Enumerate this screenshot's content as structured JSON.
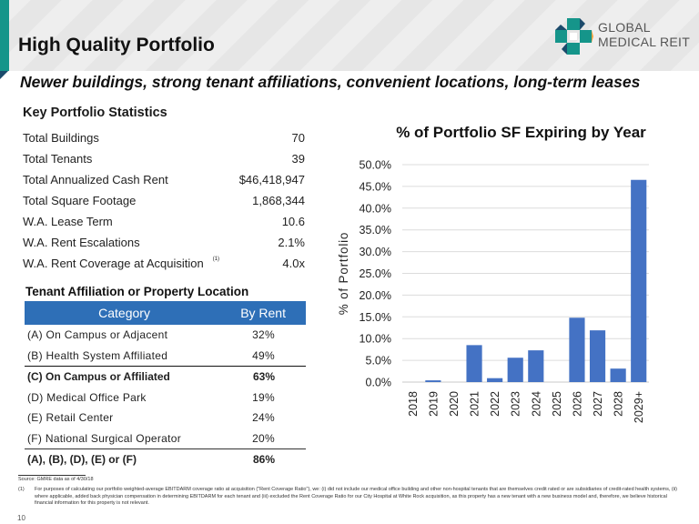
{
  "header": {
    "title": "High Quality Portfolio",
    "subtitle": "Newer buildings, strong tenant affiliations, convenient locations, long-term leases",
    "logo": {
      "line1": "GLOBAL",
      "line2": "MEDICAL REIT",
      "icon": "medical-cross-logo-icon",
      "colors": {
        "teal": "#15958a",
        "navy": "#1b4a6b",
        "orange": "#f0a23c"
      }
    }
  },
  "key_stats": {
    "title": "Key Portfolio Statistics",
    "rows": [
      {
        "label": "Total Buildings",
        "value": "70"
      },
      {
        "label": "Total Tenants",
        "value": "39"
      },
      {
        "label": "Total Annualized Cash Rent",
        "value": "$46,418,947"
      },
      {
        "label": "Total Square Footage",
        "value": "1,868,344"
      },
      {
        "label": "W.A. Lease Term",
        "value": "10.6"
      },
      {
        "label": "W.A. Rent Escalations",
        "value": "2.1%"
      },
      {
        "label": "W.A. Rent Coverage at Acquisition",
        "value": "4.0x",
        "footnote": "(1)"
      }
    ]
  },
  "tenant_affiliation": {
    "title": "Tenant Affiliation or Property Location",
    "header": {
      "category": "Category",
      "by_rent": "By Rent",
      "color": "#2e6fb7"
    },
    "rows": [
      {
        "category": "(A) On Campus or Adjacent",
        "by_rent": "32%"
      },
      {
        "category": "(B) Health System Affiliated",
        "by_rent": "49%"
      },
      {
        "category": "(C) On Campus or Affiliated",
        "by_rent": "63%"
      },
      {
        "category": "(D) Medical Office Park",
        "by_rent": "19%"
      },
      {
        "category": "(E) Retail Center",
        "by_rent": "24%"
      },
      {
        "category": "(F) National Surgical Operator",
        "by_rent": "20%"
      },
      {
        "category": "(A), (B), (D), (E) or (F)",
        "by_rent": "86%"
      }
    ]
  },
  "chart_data": {
    "type": "bar",
    "title": "% of Portfolio SF Expiring by Year",
    "xlabel": "",
    "ylabel": "% of Portfolio",
    "categories": [
      "2018",
      "2019",
      "2020",
      "2021",
      "2022",
      "2023",
      "2024",
      "2025",
      "2026",
      "2027",
      "2028",
      "2029+"
    ],
    "values": [
      0.0,
      0.4,
      0.0,
      8.5,
      0.9,
      5.6,
      7.3,
      0.0,
      14.8,
      11.9,
      3.1,
      46.5
    ],
    "ylim": [
      0,
      50
    ],
    "yticks": [
      0,
      5,
      10,
      15,
      20,
      25,
      30,
      35,
      40,
      45,
      50
    ],
    "ytick_labels": [
      "0.0%",
      "5.0%",
      "10.0%",
      "15.0%",
      "20.0%",
      "25.0%",
      "30.0%",
      "35.0%",
      "40.0%",
      "45.0%",
      "50.0%"
    ],
    "grid": true,
    "legend": "none",
    "bar_color": "#4472c4"
  },
  "footer": {
    "source": "Source:  GMRE data as of 4/30/18",
    "footnote_num": "(1)",
    "footnote": "For purposes of calculating our portfolio weighted-average EBITDARM coverage ratio at acquisition (\"Rent Coverage Ratio\"), we: (i) did not include our medical office building and other non-hospital tenants that are themselves credit rated or are subsidiaries of credit-rated health systems, (ii) where applicable, added back physician compensation in determining EBITDARM for each tenant and (iii) excluded the Rent Coverage Ratio for our City Hospital at White Rock acquisition, as this property has a new tenant with a new business model and, therefore, we believe historical financial information for this property is not relevant.",
    "page_number": "10"
  }
}
